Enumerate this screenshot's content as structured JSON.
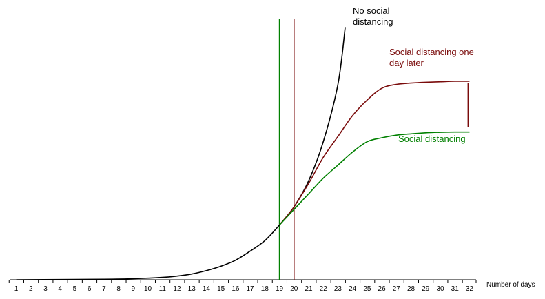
{
  "chart_data": {
    "type": "line",
    "xlabel": "Number of days",
    "ylabel": "",
    "title": "",
    "grid": false,
    "x_ticks": [
      1,
      2,
      3,
      4,
      5,
      6,
      7,
      8,
      9,
      10,
      11,
      12,
      13,
      14,
      15,
      16,
      17,
      18,
      19,
      20,
      21,
      22,
      23,
      24,
      25,
      26,
      27,
      28,
      29,
      30,
      31,
      32
    ],
    "xlim": [
      0.55,
      32.45
    ],
    "ylim": [
      0,
      100
    ],
    "series": [
      {
        "name": "No social\ndistancing",
        "name_lines": [
          "No social",
          "distancing"
        ],
        "color": "#000000",
        "points": [
          [
            1,
            0
          ],
          [
            4,
            0.1
          ],
          [
            7,
            0.2
          ],
          [
            9,
            0.4
          ],
          [
            11,
            0.9
          ],
          [
            12,
            1.4
          ],
          [
            13,
            2.2
          ],
          [
            14,
            3.5
          ],
          [
            15,
            5.2
          ],
          [
            16,
            7.5
          ],
          [
            17,
            11
          ],
          [
            18,
            15
          ],
          [
            19,
            21
          ],
          [
            20,
            28
          ],
          [
            21,
            38
          ],
          [
            22,
            53
          ],
          [
            23,
            75
          ],
          [
            23.5,
            97
          ]
        ]
      },
      {
        "name": "Social distancing one\nday later",
        "name_lines": [
          "Social distancing one",
          "day later"
        ],
        "color": "#7a0b0b",
        "points": [
          [
            19,
            21
          ],
          [
            20,
            28
          ],
          [
            21,
            37
          ],
          [
            22,
            47
          ],
          [
            23,
            55
          ],
          [
            24,
            63
          ],
          [
            25,
            69
          ],
          [
            26,
            73.5
          ],
          [
            27,
            75
          ],
          [
            28,
            75.5
          ],
          [
            29,
            75.8
          ],
          [
            30,
            76
          ],
          [
            31,
            76.2
          ],
          [
            32,
            76.2
          ]
        ]
      },
      {
        "name": "Social distancing",
        "name_lines": [
          "Social distancing"
        ],
        "color": "#008000",
        "points": [
          [
            19,
            21
          ],
          [
            20,
            27
          ],
          [
            21,
            33
          ],
          [
            22,
            39
          ],
          [
            23,
            44
          ],
          [
            24,
            49
          ],
          [
            25,
            53
          ],
          [
            26,
            54.5
          ],
          [
            27,
            55.5
          ],
          [
            28,
            56
          ],
          [
            29,
            56.4
          ],
          [
            30,
            56.6
          ],
          [
            31,
            56.7
          ],
          [
            32,
            56.7
          ]
        ]
      }
    ],
    "vertical_lines": [
      {
        "x": 19,
        "color": "#008000",
        "y_top": 100
      },
      {
        "x": 20,
        "color": "#7a0b0b",
        "y_top": 100
      }
    ],
    "gap_marker": {
      "x": 31.9,
      "y_from": 58.5,
      "y_to": 75.4,
      "color": "#7a0b0b"
    }
  }
}
